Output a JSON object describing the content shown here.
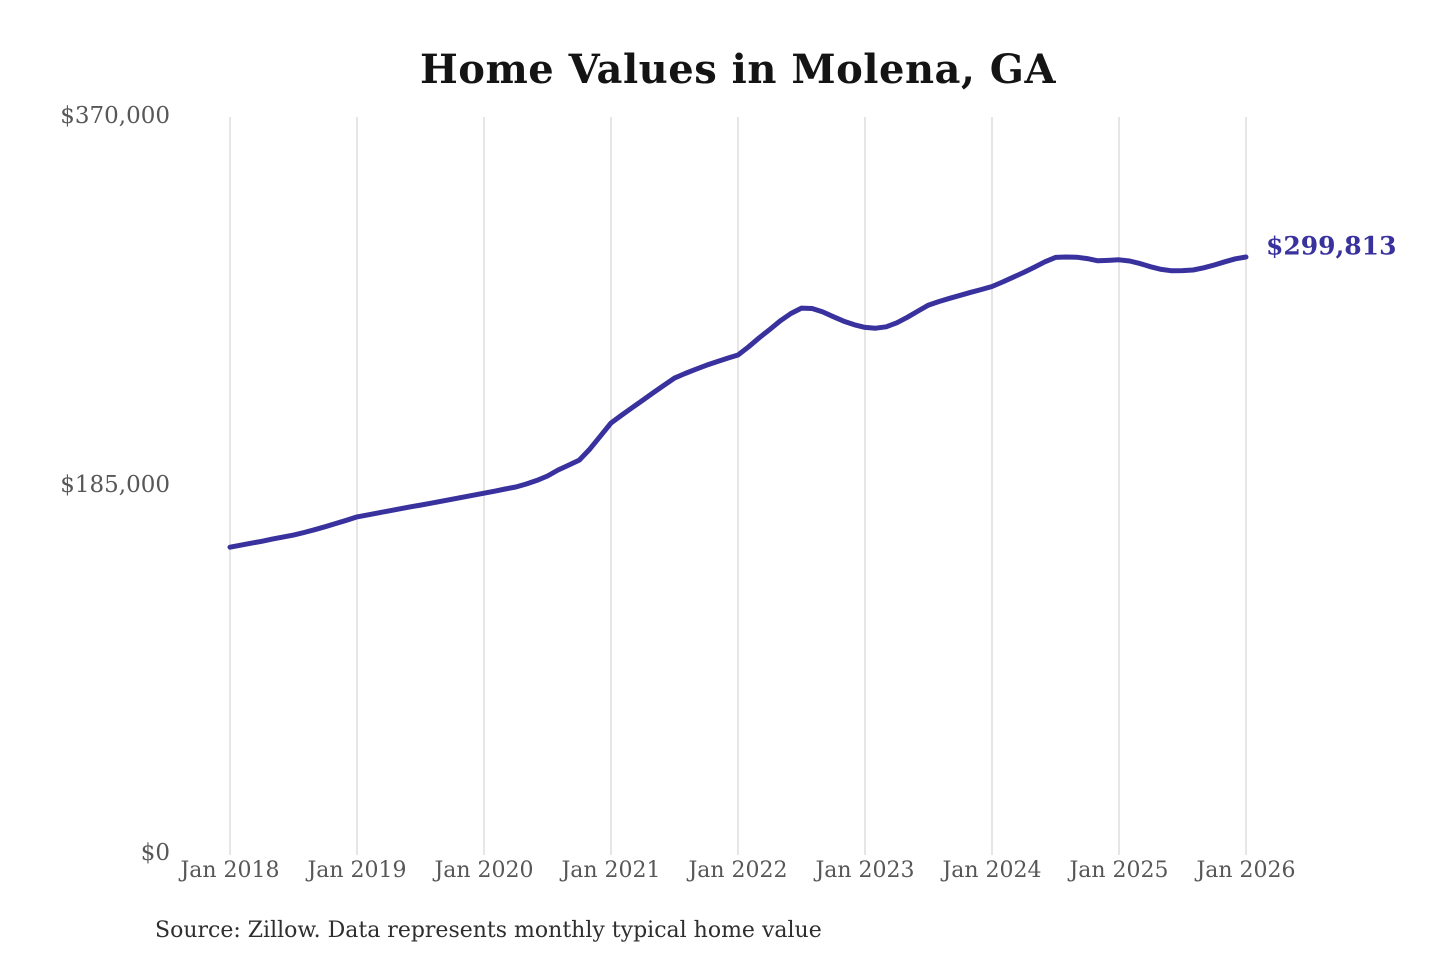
{
  "header": {
    "title": "Home Values in Molena, GA"
  },
  "footer": {
    "source_note": "Source: Zillow. Data represents monthly typical home value"
  },
  "colors": {
    "line": "#39329e",
    "value_label": "#39329e",
    "grid": "#cccccc",
    "title_text": "#141414",
    "tick_text": "#575757",
    "source_text": "#2e2e2e",
    "background": "#ffffff"
  },
  "chart_data": {
    "type": "line",
    "title": "Home Values in Molena, GA",
    "xlabel": "",
    "ylabel": "",
    "x_tick_labels": [
      "Jan 2018",
      "Jan 2019",
      "Jan 2020",
      "Jan 2021",
      "Jan 2022",
      "Jan 2023",
      "Jan 2024",
      "Jan 2025",
      "Jan 2026"
    ],
    "y_tick_labels": [
      "$0",
      "$185,000",
      "$370,000"
    ],
    "ylim": [
      0,
      370000
    ],
    "x_range": [
      "Jan 2018",
      "Jan 2026"
    ],
    "frequency": "monthly",
    "grid": "vertical-gridlines-only",
    "legend": "none",
    "last_value": 299813,
    "last_value_label": "$299,813",
    "series": [
      {
        "name": "Typical home value",
        "values": [
          154300,
          155300,
          156300,
          157300,
          158400,
          159400,
          160400,
          161700,
          163100,
          164600,
          166200,
          167800,
          169500,
          170500,
          171500,
          172500,
          173500,
          174500,
          175400,
          176400,
          177400,
          178400,
          179400,
          180400,
          181400,
          182400,
          183500,
          184500,
          186000,
          187800,
          190000,
          193000,
          195500,
          198000,
          203500,
          210000,
          216600,
          220500,
          224300,
          228000,
          231800,
          235500,
          239100,
          241400,
          243500,
          245500,
          247300,
          249000,
          250700,
          254800,
          259300,
          263500,
          267800,
          271500,
          274200,
          274000,
          272300,
          269900,
          267600,
          265800,
          264500,
          264100,
          264800,
          266800,
          269600,
          272700,
          275700,
          277500,
          279100,
          280600,
          282100,
          283500,
          285000,
          287300,
          289700,
          292100,
          294700,
          297400,
          299600,
          299800,
          299700,
          299000,
          297900,
          298100,
          298400,
          297800,
          296500,
          294900,
          293600,
          292900,
          293000,
          293300,
          294400,
          295800,
          297400,
          298900,
          299813
        ]
      }
    ]
  }
}
